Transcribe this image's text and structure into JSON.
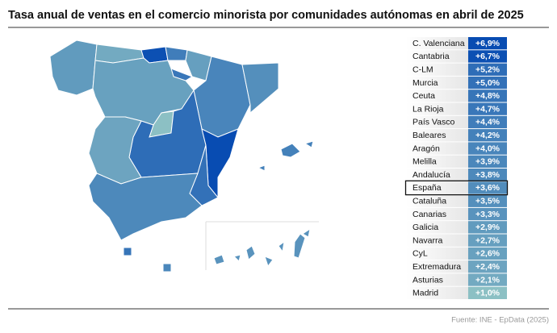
{
  "title": "Tasa anual de ventas en el comercio minorista por comunidades autónomas en abril de 2025",
  "source": "Fuente: INE - EpData (2025)",
  "table": {
    "highlight_row": 11,
    "rows": [
      {
        "region": "C. Valenciana",
        "value": 6.9,
        "value_label": "+6,9%"
      },
      {
        "region": "Cantabria",
        "value": 6.7,
        "value_label": "+6,7%"
      },
      {
        "region": "C-LM",
        "value": 5.2,
        "value_label": "+5,2%"
      },
      {
        "region": "Murcia",
        "value": 5.0,
        "value_label": "+5,0%"
      },
      {
        "region": "Ceuta",
        "value": 4.8,
        "value_label": "+4,8%"
      },
      {
        "region": "La Rioja",
        "value": 4.7,
        "value_label": "+4,7%"
      },
      {
        "region": "País Vasco",
        "value": 4.4,
        "value_label": "+4,4%"
      },
      {
        "region": "Baleares",
        "value": 4.2,
        "value_label": "+4,2%"
      },
      {
        "region": "Aragón",
        "value": 4.0,
        "value_label": "+4,0%"
      },
      {
        "region": "Melilla",
        "value": 3.9,
        "value_label": "+3,9%"
      },
      {
        "region": "Andalucía",
        "value": 3.8,
        "value_label": "+3,8%"
      },
      {
        "region": "España",
        "value": 3.6,
        "value_label": "+3,6%"
      },
      {
        "region": "Cataluña",
        "value": 3.5,
        "value_label": "+3,5%"
      },
      {
        "region": "Canarias",
        "value": 3.3,
        "value_label": "+3,3%"
      },
      {
        "region": "Galicia",
        "value": 2.9,
        "value_label": "+2,9%"
      },
      {
        "region": "Navarra",
        "value": 2.7,
        "value_label": "+2,7%"
      },
      {
        "region": "CyL",
        "value": 2.6,
        "value_label": "+2,6%"
      },
      {
        "region": "Extremadura",
        "value": 2.4,
        "value_label": "+2,4%"
      },
      {
        "region": "Asturias",
        "value": 2.1,
        "value_label": "+2,1%"
      },
      {
        "region": "Madrid",
        "value": 1.0,
        "value_label": "+1,0%"
      }
    ]
  }
}
